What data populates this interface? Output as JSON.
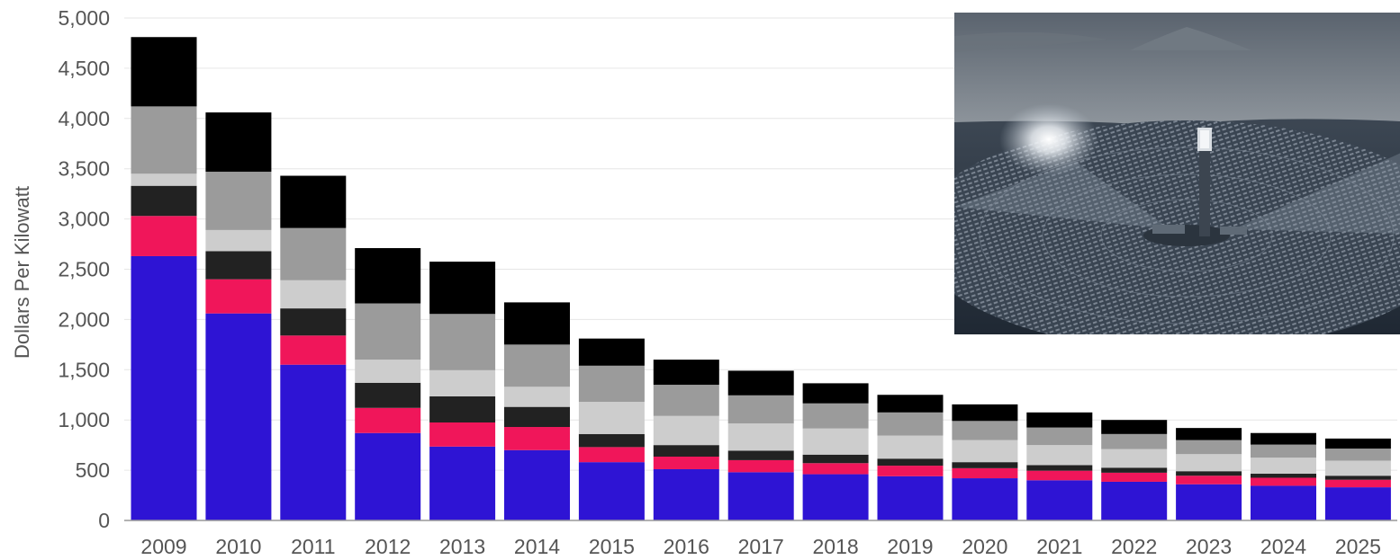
{
  "chart_data": {
    "type": "bar",
    "stacked": true,
    "title": "",
    "xlabel": "",
    "ylabel": "Dollars Per Kilowatt",
    "ylim": [
      0,
      5000
    ],
    "yticks": [
      0,
      500,
      1000,
      1500,
      2000,
      2500,
      3000,
      3500,
      4000,
      4500,
      5000
    ],
    "ytick_labels": [
      "0",
      "500",
      "1,000",
      "1,500",
      "2,000",
      "2,500",
      "3,000",
      "3,500",
      "4,000",
      "4,500",
      "5,000"
    ],
    "grid": true,
    "legend": "none",
    "categories": [
      "2009",
      "2010",
      "2011",
      "2012",
      "2013",
      "2014",
      "2015",
      "2016",
      "2017",
      "2018",
      "2019",
      "2020",
      "2021",
      "2022",
      "2023",
      "2024",
      "2025"
    ],
    "series": [
      {
        "color": "#2e14d4",
        "values": [
          2630,
          2060,
          1550,
          870,
          735,
          700,
          580,
          510,
          480,
          460,
          440,
          420,
          400,
          385,
          360,
          345,
          330
        ]
      },
      {
        "color": "#f0165a",
        "values": [
          400,
          340,
          290,
          250,
          240,
          230,
          150,
          125,
          120,
          110,
          105,
          100,
          95,
          90,
          85,
          80,
          75
        ]
      },
      {
        "color": "#222222",
        "values": [
          300,
          280,
          270,
          250,
          260,
          200,
          130,
          115,
          95,
          85,
          70,
          60,
          55,
          50,
          45,
          40,
          40
        ]
      },
      {
        "color": "#cdcdcd",
        "values": [
          120,
          210,
          280,
          230,
          260,
          200,
          320,
          290,
          270,
          260,
          230,
          220,
          200,
          185,
          170,
          160,
          150
        ]
      },
      {
        "color": "#9b9b9b",
        "values": [
          670,
          580,
          520,
          560,
          560,
          420,
          360,
          310,
          280,
          250,
          230,
          190,
          175,
          150,
          140,
          130,
          120
        ]
      },
      {
        "color": "#000000",
        "values": [
          690,
          590,
          520,
          550,
          520,
          420,
          270,
          250,
          245,
          200,
          175,
          165,
          150,
          140,
          120,
          115,
          100
        ]
      }
    ]
  },
  "photo": {
    "name": "solar-tower-photo"
  }
}
